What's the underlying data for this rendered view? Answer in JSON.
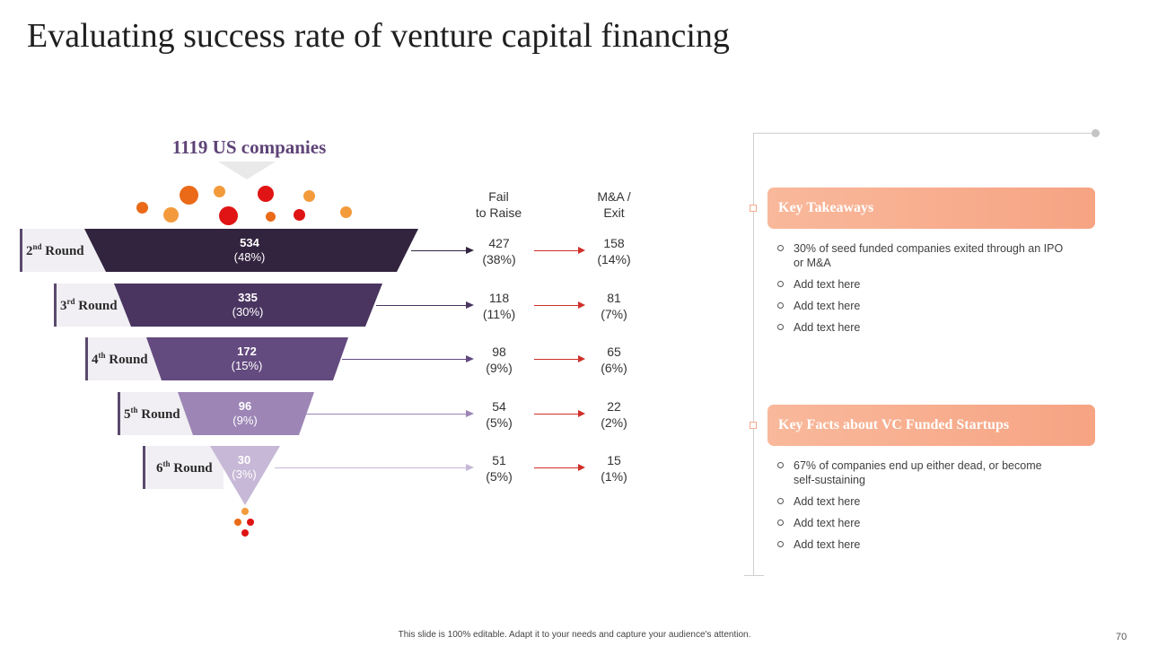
{
  "title": "Evaluating success rate of venture capital financing",
  "funnel": {
    "top_label": "1119 US companies",
    "rounds": [
      {
        "label_num": "2",
        "label_sup": "nd",
        "label_word": "Round",
        "value": "534",
        "percent": "(48%)",
        "color": "#32233f"
      },
      {
        "label_num": "3",
        "label_sup": "rd",
        "label_word": "Round",
        "value": "335",
        "percent": "(30%)",
        "color": "#4a3561"
      },
      {
        "label_num": "4",
        "label_sup": "th",
        "label_word": "Round",
        "value": "172",
        "percent": "(15%)",
        "color": "#634a7f"
      },
      {
        "label_num": "5",
        "label_sup": "th",
        "label_word": "Round",
        "value": "96",
        "percent": "(9%)",
        "color": "#9d86b6"
      },
      {
        "label_num": "6",
        "label_sup": "th",
        "label_word": "Round",
        "value": "30",
        "percent": "(3%)",
        "color": "#c6b8d6"
      }
    ]
  },
  "columns": {
    "fail": {
      "line1": "Fail",
      "line2": "to Raise"
    },
    "exit": {
      "line1": "M&A /",
      "line2": "Exit"
    }
  },
  "outcomes": [
    {
      "fail": "427",
      "fail_pct": "(38%)",
      "exit": "158",
      "exit_pct": "(14%)"
    },
    {
      "fail": "118",
      "fail_pct": "(11%)",
      "exit": "81",
      "exit_pct": "(7%)"
    },
    {
      "fail": "98",
      "fail_pct": "(9%)",
      "exit": "65",
      "exit_pct": "(6%)"
    },
    {
      "fail": "54",
      "fail_pct": "(5%)",
      "exit": "22",
      "exit_pct": "(2%)"
    },
    {
      "fail": "51",
      "fail_pct": "(5%)",
      "exit": "15",
      "exit_pct": "(1%)"
    }
  ],
  "takeaways": {
    "heading": "Key Takeaways",
    "items": [
      "30% of seed funded companies exited through an IPO or M&A",
      "Add text here",
      "Add text here",
      "Add text here"
    ]
  },
  "facts": {
    "heading": "Key Facts about VC Funded Startups",
    "items": [
      "67% of companies end up either dead, or become self-sustaining",
      "Add text here",
      "Add text here",
      "Add text here"
    ]
  },
  "footer": "This slide is 100% editable. Adapt it to your needs and capture your audience's attention.",
  "page_number": "70",
  "colors": {
    "accent": "#f6a483",
    "purple_dark": "#32233f",
    "title_purple": "#5e4377",
    "red_arrow": "#d0302a"
  }
}
